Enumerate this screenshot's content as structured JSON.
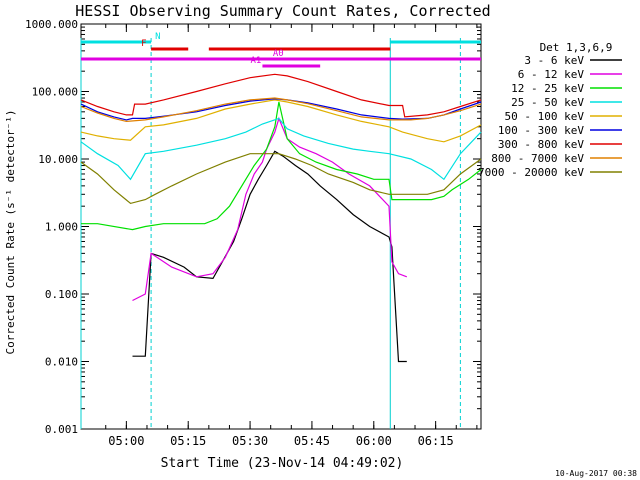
{
  "chart_data": {
    "type": "line",
    "title": "HESSI Observing Summary Count Rates, Corrected",
    "xlabel": "Start Time (23-Nov-14 04:49:02)",
    "ylabel": "Corrected Count Rate (s⁻¹ detector⁻¹)",
    "yscale": "log",
    "ylim": [
      0.001,
      1000
    ],
    "xlim_minutes": [
      0,
      97
    ],
    "x_tick_labels": [
      "05:00",
      "05:15",
      "05:30",
      "05:45",
      "06:00",
      "06:15"
    ],
    "x_ticks_minutes": [
      11,
      26,
      41,
      56,
      71,
      86
    ],
    "y_tick_labels": [
      "1000.000",
      "100.000",
      "10.000",
      "1.000",
      "0.100",
      "0.010",
      "0.001"
    ],
    "y_ticks": [
      1000,
      100,
      10,
      1,
      0.1,
      0.01,
      0.001
    ],
    "legend_title": "Det 1,3,6,9",
    "legend_position": "right",
    "x_unit": "minutes since start",
    "series": [
      {
        "name": "3 - 6 keV",
        "color": "#000000",
        "x": [
          12.5,
          15.6,
          17,
          20,
          25,
          28,
          32,
          34,
          37,
          39,
          41,
          43,
          45,
          47,
          49,
          52,
          55,
          58,
          62,
          66,
          70,
          74.7,
          75.4,
          77,
          79
        ],
        "y": [
          0.012,
          0.012,
          0.4,
          0.35,
          0.25,
          0.18,
          0.17,
          0.28,
          0.6,
          1.3,
          3,
          5,
          8,
          13,
          11,
          8,
          6,
          4,
          2.5,
          1.5,
          1,
          0.7,
          0.5,
          0.01,
          0.01
        ]
      },
      {
        "name": "6 - 12 keV",
        "color": "#e000e0",
        "x": [
          12.5,
          15.6,
          17,
          22,
          28,
          32,
          35,
          38,
          40,
          42,
          44,
          45,
          47,
          48,
          50,
          53,
          57,
          61,
          65,
          70,
          74.7,
          75.4,
          77,
          79
        ],
        "y": [
          0.08,
          0.1,
          0.4,
          0.25,
          0.18,
          0.2,
          0.35,
          0.9,
          3,
          6,
          9,
          14,
          25,
          40,
          20,
          15,
          12,
          9,
          6,
          4,
          2,
          0.3,
          0.2,
          0.18
        ]
      },
      {
        "name": "12 - 25 keV",
        "color": "#00e000",
        "x": [
          0,
          4,
          12.5,
          15.6,
          20,
          25,
          30,
          33,
          36,
          39,
          42,
          45,
          47,
          48,
          50,
          53,
          57,
          62,
          67,
          71,
          74.7,
          75.4,
          80,
          85,
          88,
          90,
          94,
          97
        ],
        "y": [
          1.1,
          1.1,
          0.9,
          1,
          1.1,
          1.1,
          1.1,
          1.3,
          2,
          4,
          8,
          14,
          30,
          70,
          20,
          12,
          9,
          7,
          6,
          5,
          5,
          2.5,
          2.5,
          2.5,
          2.8,
          3.5,
          5,
          7
        ]
      },
      {
        "name": "25 - 50 keV",
        "color": "#00e0e0",
        "x": [
          0,
          4,
          9,
          12,
          15.6,
          20,
          28,
          35,
          40,
          44,
          48,
          50,
          54,
          60,
          66,
          70,
          74.7,
          80,
          85,
          88,
          92,
          97
        ],
        "y": [
          18,
          12,
          8,
          5,
          12,
          13,
          16,
          20,
          25,
          33,
          40,
          28,
          22,
          17,
          14,
          13,
          12,
          10,
          7,
          5,
          12,
          25
        ]
      },
      {
        "name": "50 - 100 keV",
        "color": "#e0b000",
        "x": [
          0,
          4,
          8,
          12,
          15.6,
          20,
          28,
          35,
          41,
          47,
          50,
          55,
          62,
          68,
          74.7,
          78,
          84,
          88,
          92,
          97
        ],
        "y": [
          25,
          22,
          20,
          19,
          30,
          32,
          40,
          55,
          65,
          75,
          70,
          60,
          45,
          36,
          30,
          25,
          20,
          18,
          22,
          32
        ]
      },
      {
        "name": "100 - 300 keV",
        "color": "#0000e0",
        "x": [
          0,
          4,
          8,
          11,
          12.5,
          15.6,
          20,
          28,
          35,
          41,
          47,
          50,
          55,
          62,
          68,
          74.7,
          78,
          84,
          88,
          92,
          97
        ],
        "y": [
          65,
          50,
          42,
          38,
          40,
          40,
          43,
          50,
          62,
          72,
          78,
          75,
          68,
          55,
          45,
          40,
          39,
          40,
          45,
          55,
          70
        ]
      },
      {
        "name": "300 - 800 keV",
        "color": "#e00000",
        "x": [
          0,
          4,
          8,
          11,
          12.5,
          13,
          15.6,
          20,
          28,
          35,
          41,
          47,
          50,
          55,
          62,
          68,
          74.7,
          78,
          78.5,
          84,
          88,
          92,
          97
        ],
        "y": [
          75,
          60,
          50,
          45,
          45,
          65,
          65,
          75,
          100,
          130,
          160,
          180,
          170,
          140,
          100,
          75,
          62,
          62,
          42,
          45,
          50,
          60,
          75
        ]
      },
      {
        "name": "800 - 7000 keV",
        "color": "#e08000",
        "x": [
          0,
          4,
          8,
          11,
          15.6,
          20,
          28,
          35,
          41,
          47,
          50,
          55,
          62,
          68,
          74.7,
          80,
          84,
          88,
          92,
          97
        ],
        "y": [
          60,
          48,
          40,
          36,
          38,
          42,
          52,
          65,
          75,
          80,
          75,
          66,
          52,
          42,
          38,
          38,
          40,
          45,
          52,
          65
        ]
      },
      {
        "name": "7000 - 20000 keV",
        "color": "#808000",
        "x": [
          0,
          4,
          8,
          12,
          15.6,
          18,
          22,
          28,
          35,
          41,
          45,
          48,
          52,
          56,
          60,
          66,
          70,
          74.7,
          80,
          84,
          88,
          92,
          97
        ],
        "y": [
          9,
          6,
          3.5,
          2.2,
          2.5,
          3,
          4,
          6,
          9,
          12,
          12,
          12,
          10,
          8,
          6,
          4.5,
          3.5,
          3,
          3,
          3,
          3.5,
          6,
          10
        ]
      }
    ],
    "flag_bars": [
      {
        "label": "N",
        "color": "#00e0e0",
        "segments": [
          [
            0,
            17
          ],
          [
            75,
            97
          ]
        ]
      },
      {
        "label": "F",
        "color": "#e00000",
        "segments": [
          [
            17,
            26
          ],
          [
            31,
            75
          ]
        ]
      },
      {
        "label": "A0",
        "color": "#e000e0",
        "segments": [
          [
            0,
            97
          ]
        ]
      },
      {
        "label": "A1",
        "color": "#e000e0",
        "segments": [
          [
            44,
            58
          ]
        ]
      }
    ],
    "vertical_markers_minutes": [
      0,
      17,
      75,
      92
    ],
    "footer_timestamp": "10-Aug-2017 00:38"
  }
}
